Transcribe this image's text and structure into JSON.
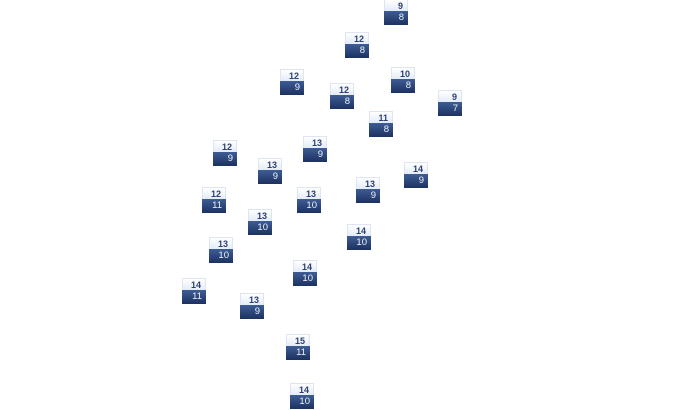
{
  "markers": [
    {
      "top": "9",
      "bottom": "8"
    },
    {
      "top": "12",
      "bottom": "8"
    },
    {
      "top": "12",
      "bottom": "9"
    },
    {
      "top": "10",
      "bottom": "8"
    },
    {
      "top": "12",
      "bottom": "8"
    },
    {
      "top": "9",
      "bottom": "7"
    },
    {
      "top": "11",
      "bottom": "8"
    },
    {
      "top": "13",
      "bottom": "9"
    },
    {
      "top": "12",
      "bottom": "9"
    },
    {
      "top": "13",
      "bottom": "9"
    },
    {
      "top": "14",
      "bottom": "9"
    },
    {
      "top": "13",
      "bottom": "9"
    },
    {
      "top": "13",
      "bottom": "10"
    },
    {
      "top": "12",
      "bottom": "11"
    },
    {
      "top": "13",
      "bottom": "10"
    },
    {
      "top": "14",
      "bottom": "10"
    },
    {
      "top": "13",
      "bottom": "10"
    },
    {
      "top": "14",
      "bottom": "10"
    },
    {
      "top": "14",
      "bottom": "11"
    },
    {
      "top": "13",
      "bottom": "9"
    },
    {
      "top": "15",
      "bottom": "11"
    },
    {
      "top": "14",
      "bottom": "10"
    }
  ],
  "colors": {
    "label_bg": "#e4ecf8",
    "value_bg": "#1c3160",
    "label_text": "#2c4272"
  }
}
